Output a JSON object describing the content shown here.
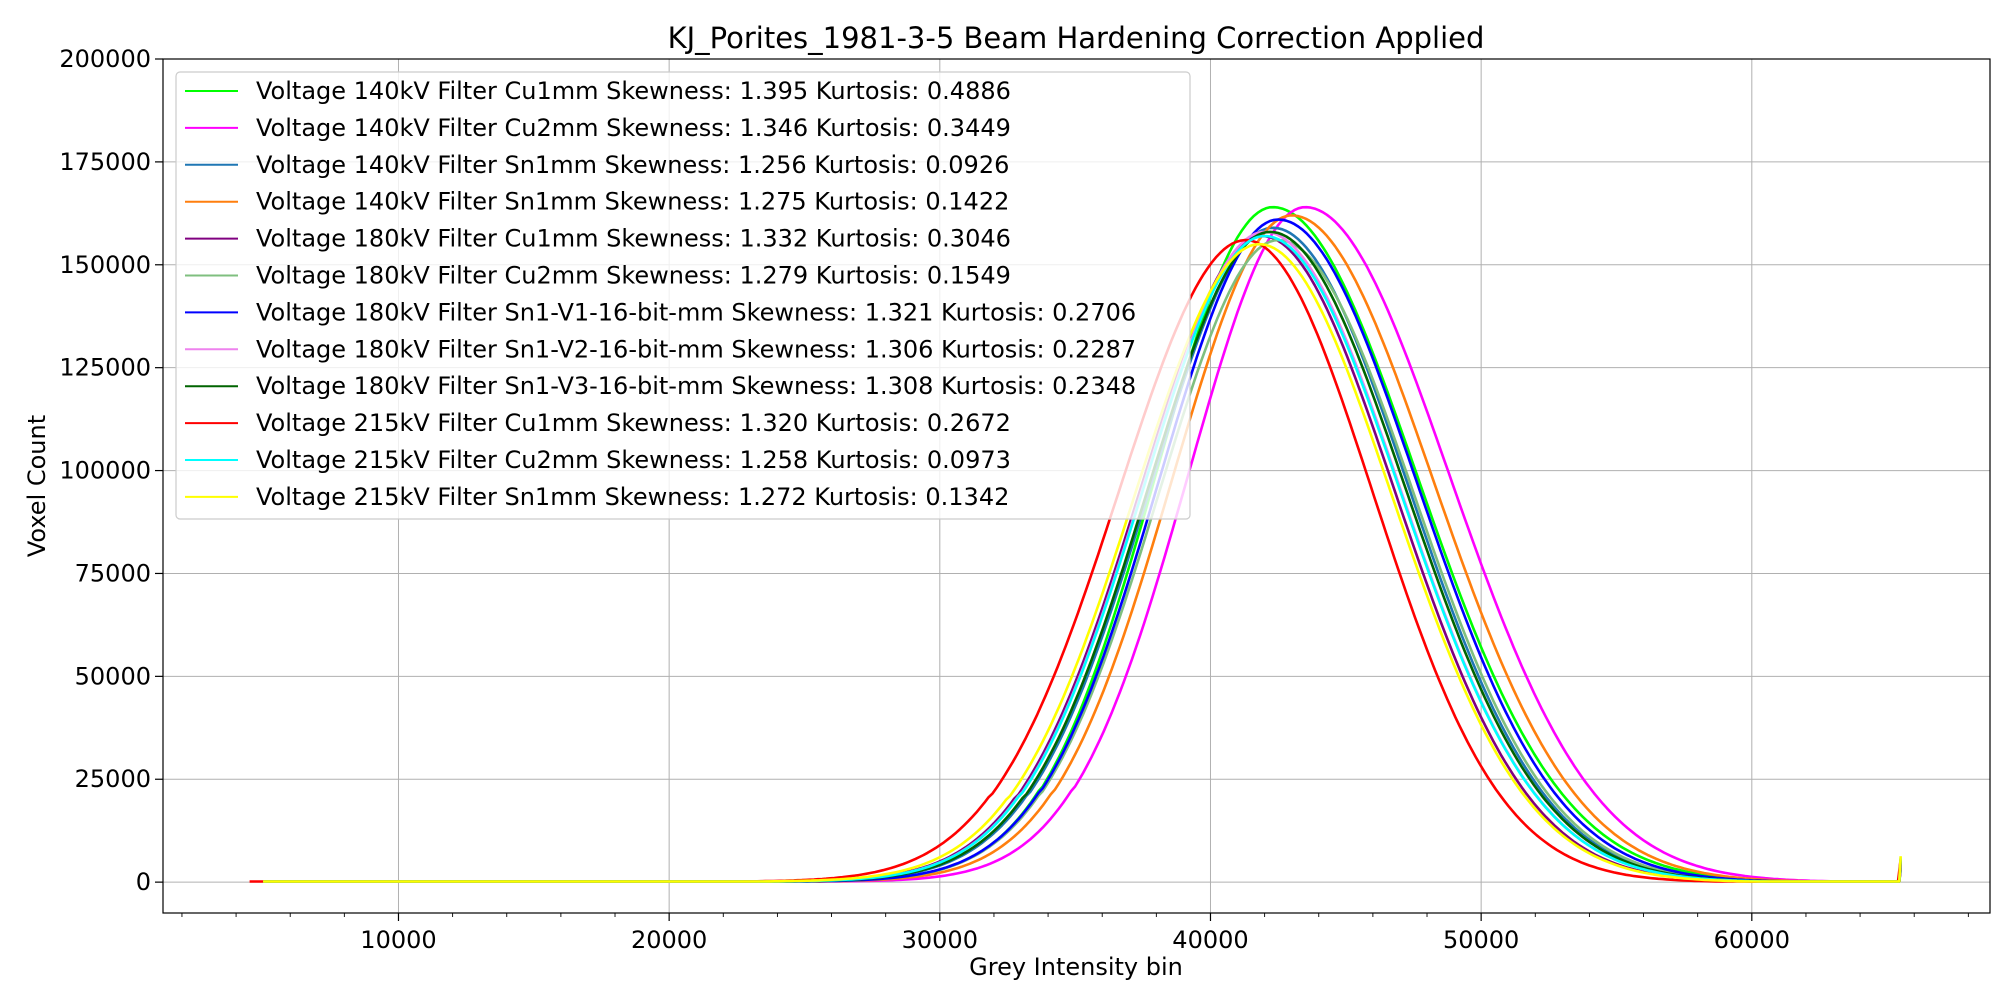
{
  "chart_data": {
    "type": "line",
    "title": "KJ_Porites_1981-3-5 Beam Hardening Correction Applied",
    "xlabel": "Grey Intensity bin",
    "ylabel": "Voxel Count",
    "xlim": [
      1300,
      68800
    ],
    "ylim": [
      -7500,
      200000
    ],
    "x_ticks": [
      10000,
      20000,
      30000,
      40000,
      50000,
      60000
    ],
    "x_tick_labels": [
      "10000",
      "20000",
      "30000",
      "40000",
      "50000",
      "60000"
    ],
    "y_ticks": [
      0,
      25000,
      50000,
      75000,
      100000,
      125000,
      150000,
      175000,
      200000
    ],
    "y_tick_labels": [
      "0",
      "25000",
      "50000",
      "75000",
      "100000",
      "125000",
      "150000",
      "175000",
      "200000"
    ],
    "grid": true,
    "legend_position": "top-left",
    "series": [
      {
        "name": "Voltage 140kV Filter Cu1mm Skewness: 1.395 Kurtosis: 0.4886",
        "color": "#00ff00",
        "peak_x": 42300,
        "peak_y": 164000,
        "sigma_left": 4300,
        "sigma_right": 5300,
        "x_start": 5000,
        "x_end": 65500
      },
      {
        "name": "Voltage 140kV Filter Cu2mm Skewness: 1.346 Kurtosis: 0.3449",
        "color": "#ff00ff",
        "peak_x": 43500,
        "peak_y": 164000,
        "sigma_left": 4300,
        "sigma_right": 5300,
        "x_start": 5000,
        "x_end": 65500
      },
      {
        "name": "Voltage 140kV Filter Sn1mm Skewness: 1.256 Kurtosis: 0.0926",
        "color": "#1f77b4",
        "peak_x": 42300,
        "peak_y": 159000,
        "sigma_left": 4500,
        "sigma_right": 5000,
        "x_start": 5000,
        "x_end": 65500
      },
      {
        "name": "Voltage 140kV Filter Sn1mm Skewness: 1.275 Kurtosis: 0.1422",
        "color": "#ff7f0e",
        "peak_x": 43000,
        "peak_y": 162000,
        "sigma_left": 4400,
        "sigma_right": 5200,
        "x_start": 5000,
        "x_end": 65500
      },
      {
        "name": "Voltage 180kV Filter Cu1mm Skewness: 1.332 Kurtosis: 0.3046",
        "color": "#800080",
        "peak_x": 41900,
        "peak_y": 157000,
        "sigma_left": 4500,
        "sigma_right": 4900,
        "x_start": 5000,
        "x_end": 65500
      },
      {
        "name": "Voltage 180kV Filter Cu2mm Skewness: 1.279 Kurtosis: 0.1549",
        "color": "#7fbf7f",
        "peak_x": 42500,
        "peak_y": 156000,
        "sigma_left": 4400,
        "sigma_right": 5000,
        "x_start": 5000,
        "x_end": 65500
      },
      {
        "name": "Voltage 180kV Filter Sn1-V1-16-bit-mm Skewness: 1.321 Kurtosis: 0.2706",
        "color": "#0000ff",
        "peak_x": 42500,
        "peak_y": 161000,
        "sigma_left": 4400,
        "sigma_right": 5100,
        "x_start": 5000,
        "x_end": 65500
      },
      {
        "name": "Voltage 180kV Filter Sn1-V2-16-bit-mm Skewness: 1.306 Kurtosis: 0.2287",
        "color": "#ee82ee",
        "peak_x": 42000,
        "peak_y": 158000,
        "sigma_left": 4500,
        "sigma_right": 5000,
        "x_start": 5000,
        "x_end": 65500
      },
      {
        "name": "Voltage 180kV Filter Sn1-V3-16-bit-mm Skewness: 1.308 Kurtosis: 0.2348",
        "color": "#006400",
        "peak_x": 42200,
        "peak_y": 158000,
        "sigma_left": 4500,
        "sigma_right": 5000,
        "x_start": 5000,
        "x_end": 65500
      },
      {
        "name": "Voltage 215kV Filter Cu1mm Skewness: 1.320 Kurtosis: 0.2672",
        "color": "#ff0000",
        "peak_x": 41300,
        "peak_y": 156000,
        "sigma_left": 4700,
        "sigma_right": 4700,
        "x_start": 4500,
        "x_end": 65500
      },
      {
        "name": "Voltage 215kV Filter Cu2mm Skewness: 1.258 Kurtosis: 0.0973",
        "color": "#00ffff",
        "peak_x": 42000,
        "peak_y": 157000,
        "sigma_left": 4500,
        "sigma_right": 5000,
        "x_start": 5000,
        "x_end": 65500
      },
      {
        "name": "Voltage 215kV Filter Sn1mm Skewness: 1.272 Kurtosis: 0.1342",
        "color": "#ffff00",
        "peak_x": 41800,
        "peak_y": 155000,
        "sigma_left": 4600,
        "sigma_right": 4900,
        "x_start": 5000,
        "x_end": 65500
      }
    ]
  }
}
